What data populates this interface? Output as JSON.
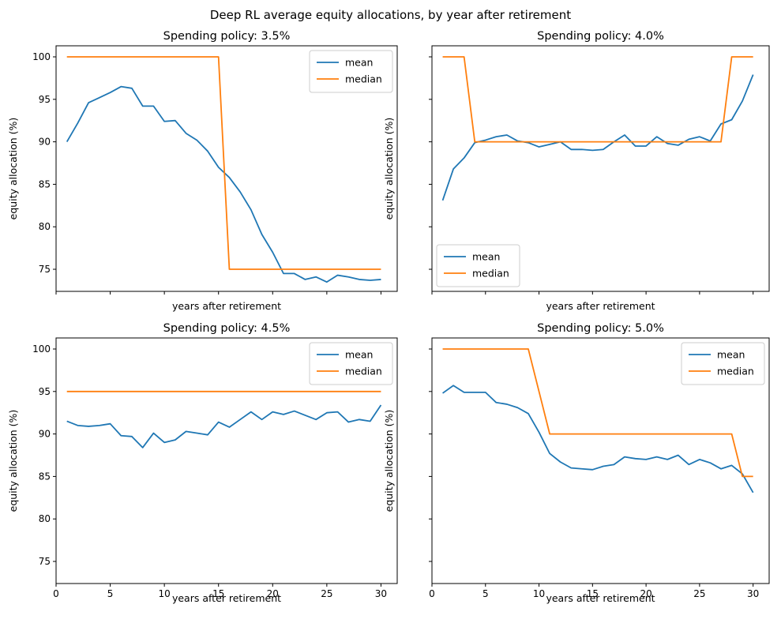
{
  "figure": {
    "suptitle": "Deep RL average equity allocations, by year after retirement"
  },
  "colors": {
    "mean": "#1f77b4",
    "median": "#ff7f0e",
    "axes": "#000000",
    "background": "#ffffff",
    "legend_border": "#cccccc"
  },
  "chart_data": [
    {
      "type": "line",
      "title": "Spending policy: 3.5%",
      "xlabel": "years after retirement",
      "ylabel": "equity allocation (%)",
      "x": [
        1,
        2,
        3,
        4,
        5,
        6,
        7,
        8,
        9,
        10,
        11,
        12,
        13,
        14,
        15,
        16,
        17,
        18,
        19,
        20,
        21,
        22,
        23,
        24,
        25,
        26,
        27,
        28,
        29,
        30
      ],
      "series": [
        {
          "name": "mean",
          "values": [
            90.0,
            92.2,
            94.6,
            95.2,
            95.8,
            96.5,
            96.3,
            94.2,
            94.2,
            92.4,
            92.5,
            91.0,
            90.2,
            88.9,
            87.0,
            85.8,
            84.1,
            82.0,
            79.1,
            77.0,
            74.5,
            74.5,
            73.8,
            74.1,
            73.5,
            74.3,
            74.1,
            73.8,
            73.7,
            73.8
          ]
        },
        {
          "name": "median",
          "x": [
            1,
            15,
            16,
            30
          ],
          "values": [
            100,
            100,
            75,
            75
          ]
        }
      ],
      "xlim": [
        0,
        31.5
      ],
      "ylim": [
        72.4,
        101.3
      ],
      "xticks": [
        0,
        5,
        10,
        15,
        20,
        25,
        30
      ],
      "yticks": [
        75,
        80,
        85,
        90,
        95,
        100
      ],
      "show_xticklabels": false,
      "show_yticklabels": true,
      "grid": false,
      "legend": "upper right"
    },
    {
      "type": "line",
      "title": "Spending policy: 4.0%",
      "xlabel": "years after retirement",
      "ylabel": "equity allocation (%)",
      "x": [
        1,
        2,
        3,
        4,
        5,
        6,
        7,
        8,
        9,
        10,
        11,
        12,
        13,
        14,
        15,
        16,
        17,
        18,
        19,
        20,
        21,
        22,
        23,
        24,
        25,
        26,
        27,
        28,
        29,
        30
      ],
      "series": [
        {
          "name": "mean",
          "values": [
            83.1,
            86.8,
            88.1,
            89.9,
            90.2,
            90.6,
            90.8,
            90.1,
            89.9,
            89.4,
            89.7,
            90.0,
            89.1,
            89.1,
            89.0,
            89.1,
            90.0,
            90.8,
            89.5,
            89.5,
            90.6,
            89.8,
            89.6,
            90.3,
            90.6,
            90.1,
            92.1,
            92.6,
            94.8,
            97.9
          ]
        },
        {
          "name": "median",
          "x": [
            1,
            3,
            4,
            27,
            28,
            30
          ],
          "values": [
            100,
            100,
            90,
            90,
            100,
            100
          ]
        }
      ],
      "xlim": [
        0,
        31.5
      ],
      "ylim": [
        72.4,
        101.3
      ],
      "xticks": [
        0,
        5,
        10,
        15,
        20,
        25,
        30
      ],
      "yticks": [
        75,
        80,
        85,
        90,
        95,
        100
      ],
      "show_xticklabels": false,
      "show_yticklabels": false,
      "grid": false,
      "legend": "lower left"
    },
    {
      "type": "line",
      "title": "Spending policy: 4.5%",
      "xlabel": "years after retirement",
      "ylabel": "equity allocation (%)",
      "x": [
        1,
        2,
        3,
        4,
        5,
        6,
        7,
        8,
        9,
        10,
        11,
        12,
        13,
        14,
        15,
        16,
        17,
        18,
        19,
        20,
        21,
        22,
        23,
        24,
        25,
        26,
        27,
        28,
        29,
        30
      ],
      "series": [
        {
          "name": "mean",
          "values": [
            91.5,
            91.0,
            90.9,
            91.0,
            91.2,
            89.8,
            89.7,
            88.4,
            90.1,
            89.0,
            89.3,
            90.3,
            90.1,
            89.9,
            91.4,
            90.8,
            91.7,
            92.6,
            91.7,
            92.6,
            92.3,
            92.7,
            92.2,
            91.7,
            92.5,
            92.6,
            91.4,
            91.7,
            91.5,
            93.4
          ]
        },
        {
          "name": "median",
          "x": [
            1,
            30
          ],
          "values": [
            95,
            95
          ]
        }
      ],
      "xlim": [
        0,
        31.5
      ],
      "ylim": [
        72.4,
        101.3
      ],
      "xticks": [
        0,
        5,
        10,
        15,
        20,
        25,
        30
      ],
      "yticks": [
        75,
        80,
        85,
        90,
        95,
        100
      ],
      "show_xticklabels": true,
      "show_yticklabels": true,
      "grid": false,
      "legend": "upper right"
    },
    {
      "type": "line",
      "title": "Spending policy: 5.0%",
      "xlabel": "years after retirement",
      "ylabel": "equity allocation (%)",
      "x": [
        1,
        2,
        3,
        4,
        5,
        6,
        7,
        8,
        9,
        10,
        11,
        12,
        13,
        14,
        15,
        16,
        17,
        18,
        19,
        20,
        21,
        22,
        23,
        24,
        25,
        26,
        27,
        28,
        29,
        30
      ],
      "series": [
        {
          "name": "mean",
          "values": [
            94.8,
            95.7,
            94.9,
            94.9,
            94.9,
            93.7,
            93.5,
            93.1,
            92.4,
            90.2,
            87.7,
            86.7,
            86.0,
            85.9,
            85.8,
            86.2,
            86.4,
            87.3,
            87.1,
            87.0,
            87.3,
            87.0,
            87.5,
            86.4,
            87.0,
            86.6,
            85.9,
            86.3,
            85.3,
            83.1
          ]
        },
        {
          "name": "median",
          "x": [
            1,
            9,
            11,
            28,
            29,
            30
          ],
          "values": [
            100,
            100,
            90,
            90,
            85,
            85
          ]
        }
      ],
      "xlim": [
        0,
        31.5
      ],
      "ylim": [
        72.4,
        101.3
      ],
      "xticks": [
        0,
        5,
        10,
        15,
        20,
        25,
        30
      ],
      "yticks": [
        75,
        80,
        85,
        90,
        95,
        100
      ],
      "show_xticklabels": true,
      "show_yticklabels": false,
      "grid": false,
      "legend": "upper right"
    }
  ]
}
